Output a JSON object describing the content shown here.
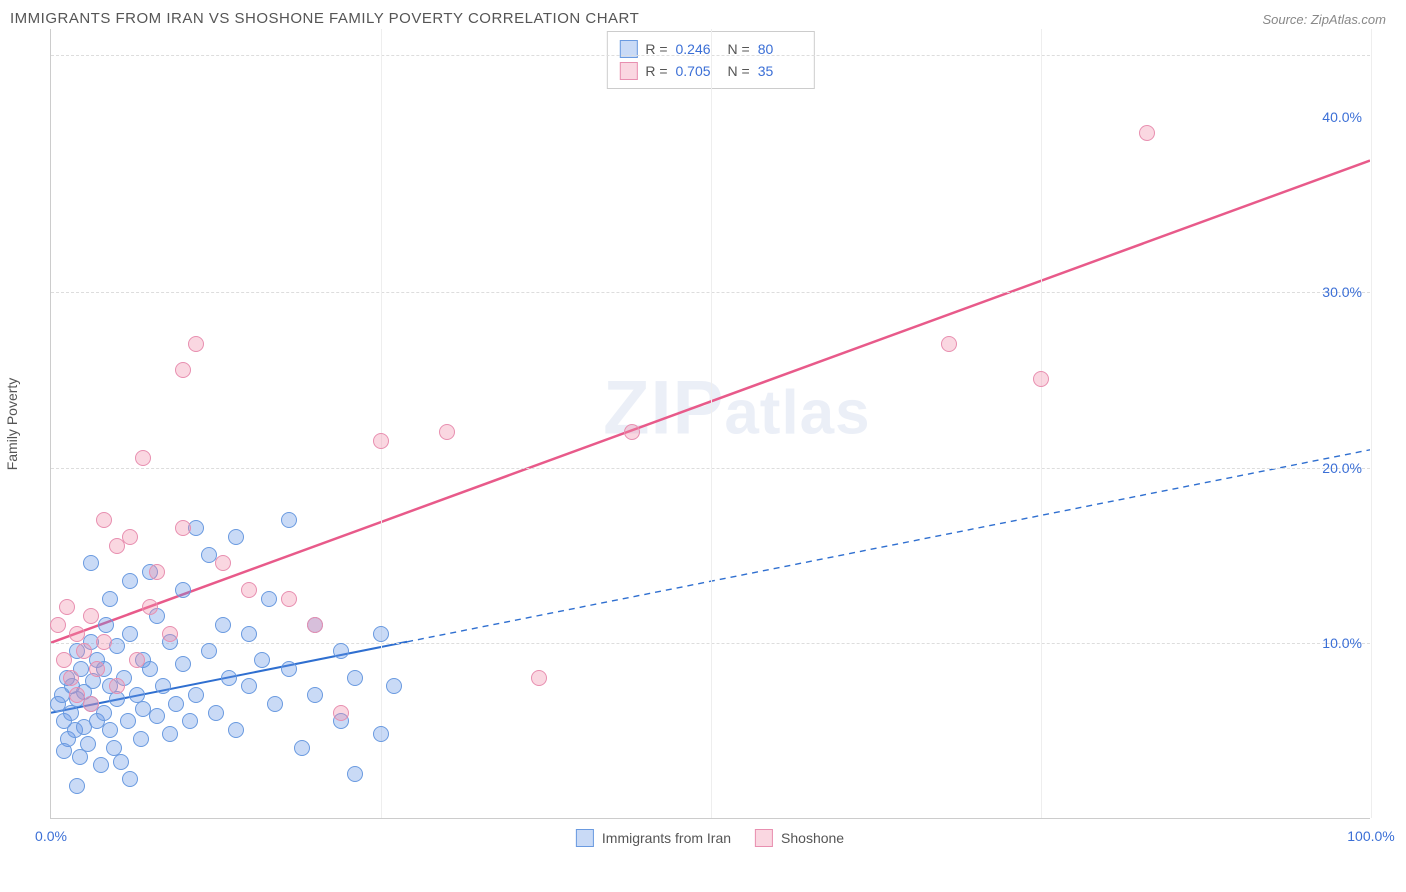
{
  "header": {
    "title": "IMMIGRANTS FROM IRAN VS SHOSHONE FAMILY POVERTY CORRELATION CHART",
    "source_prefix": "Source: ",
    "source": "ZipAtlas.com"
  },
  "chart": {
    "type": "scatter",
    "ylabel": "Family Poverty",
    "watermark": "ZIPatlas",
    "background_color": "#ffffff",
    "grid_color": "#dddddd",
    "axis_color": "#cccccc",
    "tick_color": "#3b6fd6",
    "xlim": [
      0,
      100
    ],
    "ylim": [
      0,
      45
    ],
    "xticks": [
      {
        "v": 0,
        "label": "0.0%"
      },
      {
        "v": 100,
        "label": "100.0%"
      }
    ],
    "xgrid_minor": [
      25,
      50,
      75,
      100
    ],
    "yticks": [
      {
        "v": 10,
        "label": "10.0%"
      },
      {
        "v": 20,
        "label": "20.0%"
      },
      {
        "v": 30,
        "label": "30.0%"
      },
      {
        "v": 40,
        "label": "40.0%"
      }
    ],
    "ygrid": [
      10,
      20,
      30,
      43.5
    ],
    "marker_radius": 8,
    "series": [
      {
        "id": "iran",
        "label": "Immigrants from Iran",
        "fill": "rgba(100,150,230,0.35)",
        "stroke": "#6a9ae0",
        "line_color": "#2f6fd0",
        "R": "0.246",
        "N": "80",
        "trend": {
          "x0": 0,
          "y0": 6.0,
          "x1": 100,
          "y1": 21.0,
          "solid_until_x": 27,
          "dash": "6,5",
          "width": 2
        },
        "points": [
          [
            0.5,
            6.5
          ],
          [
            0.8,
            7.0
          ],
          [
            1.0,
            5.5
          ],
          [
            1.2,
            8.0
          ],
          [
            1.3,
            4.5
          ],
          [
            1.5,
            6.0
          ],
          [
            1.6,
            7.5
          ],
          [
            1.8,
            5.0
          ],
          [
            2.0,
            6.8
          ],
          [
            2.0,
            9.5
          ],
          [
            2.2,
            3.5
          ],
          [
            2.3,
            8.5
          ],
          [
            2.5,
            5.2
          ],
          [
            2.5,
            7.2
          ],
          [
            2.8,
            4.2
          ],
          [
            3.0,
            6.5
          ],
          [
            3.0,
            10.0
          ],
          [
            3.0,
            14.5
          ],
          [
            3.2,
            7.8
          ],
          [
            3.5,
            5.5
          ],
          [
            3.5,
            9.0
          ],
          [
            3.8,
            3.0
          ],
          [
            4.0,
            6.0
          ],
          [
            4.0,
            8.5
          ],
          [
            4.2,
            11.0
          ],
          [
            4.5,
            5.0
          ],
          [
            4.5,
            7.5
          ],
          [
            4.8,
            4.0
          ],
          [
            5.0,
            6.8
          ],
          [
            5.0,
            9.8
          ],
          [
            5.3,
            3.2
          ],
          [
            5.5,
            8.0
          ],
          [
            5.8,
            5.5
          ],
          [
            6.0,
            10.5
          ],
          [
            6.0,
            13.5
          ],
          [
            6.5,
            7.0
          ],
          [
            6.8,
            4.5
          ],
          [
            7.0,
            9.0
          ],
          [
            7.0,
            6.2
          ],
          [
            7.5,
            8.5
          ],
          [
            8.0,
            5.8
          ],
          [
            8.0,
            11.5
          ],
          [
            8.5,
            7.5
          ],
          [
            9.0,
            4.8
          ],
          [
            9.0,
            10.0
          ],
          [
            9.5,
            6.5
          ],
          [
            10.0,
            8.8
          ],
          [
            10.0,
            13.0
          ],
          [
            10.5,
            5.5
          ],
          [
            11.0,
            7.0
          ],
          [
            11.0,
            16.5
          ],
          [
            12.0,
            9.5
          ],
          [
            12.0,
            15.0
          ],
          [
            12.5,
            6.0
          ],
          [
            13.0,
            11.0
          ],
          [
            13.5,
            8.0
          ],
          [
            14.0,
            5.0
          ],
          [
            14.0,
            16.0
          ],
          [
            15.0,
            10.5
          ],
          [
            15.0,
            7.5
          ],
          [
            16.0,
            9.0
          ],
          [
            16.5,
            12.5
          ],
          [
            17.0,
            6.5
          ],
          [
            18.0,
            8.5
          ],
          [
            18.0,
            17.0
          ],
          [
            19.0,
            4.0
          ],
          [
            20.0,
            11.0
          ],
          [
            20.0,
            7.0
          ],
          [
            22.0,
            9.5
          ],
          [
            22.0,
            5.5
          ],
          [
            23.0,
            2.5
          ],
          [
            23.0,
            8.0
          ],
          [
            25.0,
            10.5
          ],
          [
            25.0,
            4.8
          ],
          [
            26.0,
            7.5
          ],
          [
            2.0,
            1.8
          ],
          [
            6.0,
            2.2
          ],
          [
            4.5,
            12.5
          ],
          [
            7.5,
            14.0
          ],
          [
            1.0,
            3.8
          ]
        ]
      },
      {
        "id": "shoshone",
        "label": "Shoshone",
        "fill": "rgba(240,140,170,0.35)",
        "stroke": "#e88fb0",
        "line_color": "#e85a8a",
        "R": "0.705",
        "N": "35",
        "trend": {
          "x0": 0,
          "y0": 10.0,
          "x1": 100,
          "y1": 37.5,
          "solid_until_x": 100,
          "dash": "",
          "width": 2.5
        },
        "points": [
          [
            0.5,
            11.0
          ],
          [
            1.0,
            9.0
          ],
          [
            1.2,
            12.0
          ],
          [
            1.5,
            8.0
          ],
          [
            2.0,
            10.5
          ],
          [
            2.0,
            7.0
          ],
          [
            2.5,
            9.5
          ],
          [
            3.0,
            11.5
          ],
          [
            3.0,
            6.5
          ],
          [
            3.5,
            8.5
          ],
          [
            4.0,
            17.0
          ],
          [
            4.0,
            10.0
          ],
          [
            5.0,
            15.5
          ],
          [
            5.0,
            7.5
          ],
          [
            6.0,
            16.0
          ],
          [
            6.5,
            9.0
          ],
          [
            7.0,
            20.5
          ],
          [
            7.5,
            12.0
          ],
          [
            8.0,
            14.0
          ],
          [
            9.0,
            10.5
          ],
          [
            10.0,
            16.5
          ],
          [
            10.0,
            25.5
          ],
          [
            11.0,
            27.0
          ],
          [
            13.0,
            14.5
          ],
          [
            15.0,
            13.0
          ],
          [
            18.0,
            12.5
          ],
          [
            20.0,
            11.0
          ],
          [
            22.0,
            6.0
          ],
          [
            30.0,
            22.0
          ],
          [
            37.0,
            8.0
          ],
          [
            44.0,
            22.0
          ],
          [
            68.0,
            27.0
          ],
          [
            75.0,
            25.0
          ],
          [
            83.0,
            39.0
          ],
          [
            25.0,
            21.5
          ]
        ]
      }
    ],
    "legend": {
      "stats_label_R": "R =",
      "stats_label_N": "N ="
    }
  }
}
